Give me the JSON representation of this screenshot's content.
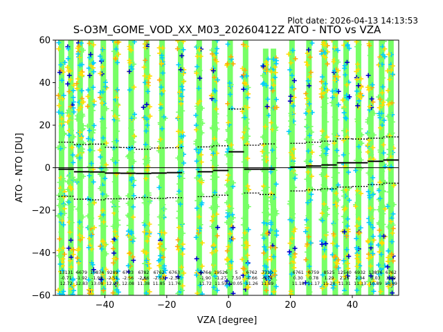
{
  "plot_date": "Plot date: 2026-04-13 14:13:53",
  "chart_data": {
    "type": "scatter",
    "title": "S-O3M_GOME_VOD_XX_M03_20260412Z ATO - NTO vs VZA",
    "xlabel": "VZA [degree]",
    "ylabel": "ATO - NTO [DU]",
    "xlim": [
      -56,
      55
    ],
    "ylim": [
      -60,
      60
    ],
    "xticks": [
      -40,
      -20,
      0,
      20,
      40
    ],
    "yticks": [
      -60,
      -40,
      -20,
      0,
      20,
      40,
      60
    ],
    "grid": false,
    "legend": "none",
    "marker_colors": [
      "#77ff66",
      "#00ccff",
      "#ffdd00",
      "#ffaa00",
      "#0000cc",
      "#000000"
    ],
    "scatter_columns_vza": [
      -54,
      -51,
      -48,
      -44.5,
      -40.5,
      -36.5,
      -31.5,
      -26.5,
      -21.5,
      -15.5,
      -9.5,
      -4.5,
      0.5,
      5.5,
      12,
      14.5,
      20.5,
      26,
      31,
      34.5,
      38,
      42,
      46,
      49.5,
      52.5
    ],
    "stats_columns": [
      {
        "vza": -52.5,
        "count": "13131",
        "mean": "-0.71",
        "std": "12.72"
      },
      {
        "vza": -47.5,
        "count": "6679",
        "mean": "-1.92",
        "std": "12.83"
      },
      {
        "vza": -42.5,
        "count": "10874",
        "mean": "-1.98",
        "std": "13.08"
      },
      {
        "vza": -37.5,
        "count": "9289",
        "mean": "-2.51",
        "std": "12.07"
      },
      {
        "vza": -32.5,
        "count": "6753",
        "mean": "-2.56",
        "std": "12.08"
      },
      {
        "vza": -27.5,
        "count": "6782",
        "mean": "-2.66",
        "std": "11.38"
      },
      {
        "vza": -22.5,
        "count": "6762",
        "mean": "-2.53",
        "std": "11.85"
      },
      {
        "vza": -17.5,
        "count": "6763",
        "mean": "-2.34",
        "std": "11.76"
      },
      {
        "vza": -7.5,
        "count": "6764",
        "mean": "-1.90",
        "std": "11.72"
      },
      {
        "vza": -2.5,
        "count": "19526",
        "mean": "-1.27",
        "std": "11.59"
      },
      {
        "vza": 2.5,
        "count": "5",
        "mean": "7.50",
        "std": "20.05"
      },
      {
        "vza": 7.5,
        "count": "6762",
        "mean": "-0.66",
        "std": "11.26"
      },
      {
        "vza": 12.5,
        "count": "7310",
        "mean": "-0.71",
        "std": "11.89"
      },
      {
        "vza": 22.5,
        "count": "6761",
        "mean": "0.30",
        "std": "11.18"
      },
      {
        "vza": 27.5,
        "count": "6759",
        "mean": "0.78",
        "std": "11.17"
      },
      {
        "vza": 32.5,
        "count": "8525",
        "mean": "1.29",
        "std": "11.20"
      },
      {
        "vza": 37.5,
        "count": "12540",
        "mean": "2.25",
        "std": "11.31"
      },
      {
        "vza": 42.5,
        "count": "6932",
        "mean": "2.34",
        "std": "11.13"
      },
      {
        "vza": 47.5,
        "count": "13876",
        "mean": "3.03",
        "std": "10.89"
      },
      {
        "vza": 52.5,
        "count": "6762",
        "mean": "3.59",
        "std": "10.89"
      }
    ],
    "mean_line": [
      {
        "x0": -55,
        "x1": -50,
        "y": -0.7
      },
      {
        "x0": -50,
        "x1": -45,
        "y": -1.9
      },
      {
        "x0": -45,
        "x1": -40,
        "y": -2.0
      },
      {
        "x0": -40,
        "x1": -35,
        "y": -2.5
      },
      {
        "x0": -35,
        "x1": -30,
        "y": -2.6
      },
      {
        "x0": -30,
        "x1": -25,
        "y": -2.7
      },
      {
        "x0": -25,
        "x1": -20,
        "y": -2.5
      },
      {
        "x0": -20,
        "x1": -15,
        "y": -2.3
      },
      {
        "x0": -10,
        "x1": -5,
        "y": -1.9
      },
      {
        "x0": -5,
        "x1": 0,
        "y": -1.3
      },
      {
        "x0": 0,
        "x1": 5,
        "y": 7.5
      },
      {
        "x0": 5,
        "x1": 10,
        "y": -0.7
      },
      {
        "x0": 10,
        "x1": 15,
        "y": -0.7
      },
      {
        "x0": 20,
        "x1": 25,
        "y": 0.3
      },
      {
        "x0": 25,
        "x1": 30,
        "y": 0.8
      },
      {
        "x0": 30,
        "x1": 35,
        "y": 1.3
      },
      {
        "x0": 35,
        "x1": 40,
        "y": 2.3
      },
      {
        "x0": 40,
        "x1": 45,
        "y": 2.3
      },
      {
        "x0": 45,
        "x1": 50,
        "y": 3.0
      },
      {
        "x0": 50,
        "x1": 55,
        "y": 3.6
      }
    ],
    "upper_band": [
      {
        "x0": -55,
        "x1": -50,
        "y": 12.0
      },
      {
        "x0": -50,
        "x1": -45,
        "y": 10.9
      },
      {
        "x0": -45,
        "x1": -40,
        "y": 11.1
      },
      {
        "x0": -40,
        "x1": -35,
        "y": 9.6
      },
      {
        "x0": -35,
        "x1": -30,
        "y": 9.5
      },
      {
        "x0": -30,
        "x1": -25,
        "y": 8.7
      },
      {
        "x0": -25,
        "x1": -20,
        "y": 9.3
      },
      {
        "x0": -20,
        "x1": -15,
        "y": 9.4
      },
      {
        "x0": -10,
        "x1": -5,
        "y": 9.8
      },
      {
        "x0": -5,
        "x1": 0,
        "y": 10.3
      },
      {
        "x0": 0,
        "x1": 5,
        "y": 27.6
      },
      {
        "x0": 5,
        "x1": 10,
        "y": 10.6
      },
      {
        "x0": 10,
        "x1": 15,
        "y": 11.2
      },
      {
        "x0": 20,
        "x1": 25,
        "y": 11.5
      },
      {
        "x0": 25,
        "x1": 30,
        "y": 12.0
      },
      {
        "x0": 30,
        "x1": 35,
        "y": 12.5
      },
      {
        "x0": 35,
        "x1": 40,
        "y": 13.6
      },
      {
        "x0": 40,
        "x1": 45,
        "y": 13.5
      },
      {
        "x0": 45,
        "x1": 50,
        "y": 13.9
      },
      {
        "x0": 50,
        "x1": 55,
        "y": 14.5
      }
    ],
    "lower_band": [
      {
        "x0": -55,
        "x1": -50,
        "y": -13.4
      },
      {
        "x0": -50,
        "x1": -45,
        "y": -14.8
      },
      {
        "x0": -45,
        "x1": -40,
        "y": -15.1
      },
      {
        "x0": -40,
        "x1": -35,
        "y": -14.6
      },
      {
        "x0": -35,
        "x1": -30,
        "y": -14.6
      },
      {
        "x0": -30,
        "x1": -25,
        "y": -14.0
      },
      {
        "x0": -25,
        "x1": -20,
        "y": -14.4
      },
      {
        "x0": -20,
        "x1": -15,
        "y": -14.1
      },
      {
        "x0": -10,
        "x1": -5,
        "y": -13.6
      },
      {
        "x0": -5,
        "x1": 0,
        "y": -12.9
      },
      {
        "x0": 5,
        "x1": 10,
        "y": -11.9
      },
      {
        "x0": 10,
        "x1": 15,
        "y": -12.6
      },
      {
        "x0": 20,
        "x1": 25,
        "y": -10.9
      },
      {
        "x0": 25,
        "x1": 30,
        "y": -10.4
      },
      {
        "x0": 30,
        "x1": 35,
        "y": -9.9
      },
      {
        "x0": 35,
        "x1": 40,
        "y": -9.1
      },
      {
        "x0": 40,
        "x1": 45,
        "y": -8.8
      },
      {
        "x0": 45,
        "x1": 50,
        "y": -7.9
      },
      {
        "x0": 50,
        "x1": 55,
        "y": -7.3
      }
    ]
  }
}
